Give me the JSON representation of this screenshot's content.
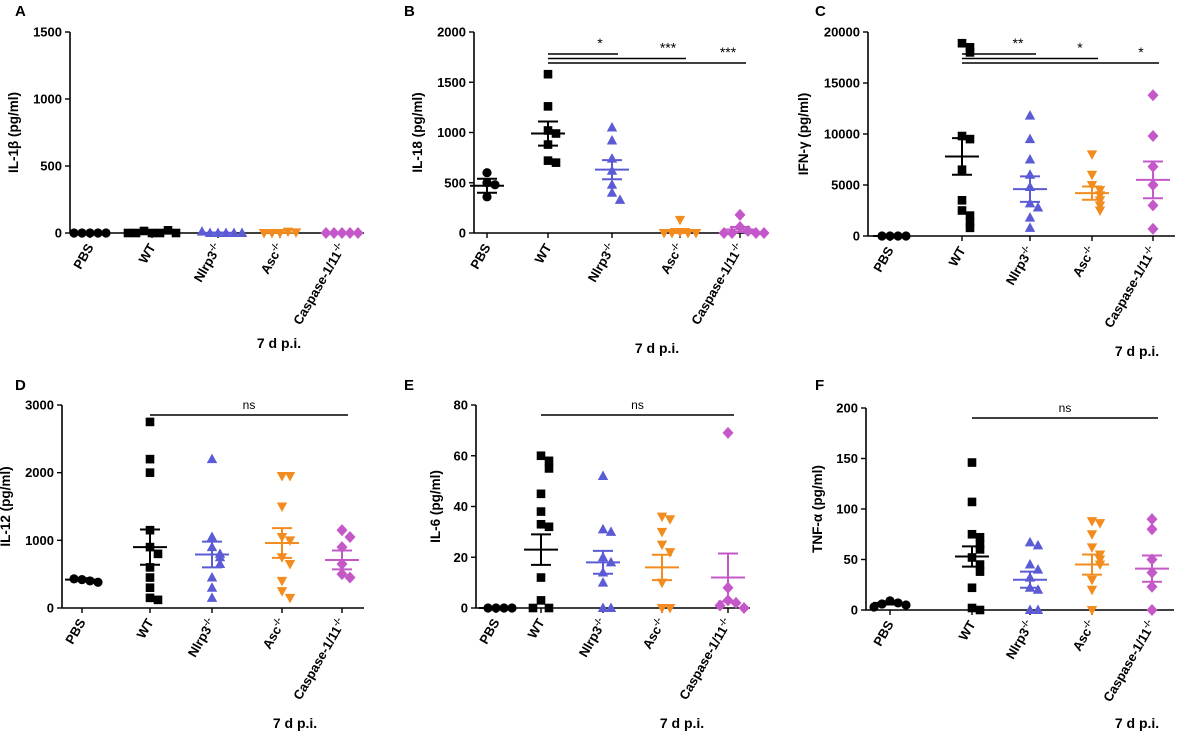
{
  "colors": {
    "PBS": "#000000",
    "WT": "#000000",
    "Nlrp3": "#5b5bd6",
    "Asc": "#f28c1e",
    "Casp": "#c558c9"
  },
  "chart_data": [
    {
      "panel": "A",
      "type": "scatter",
      "ylabel": "IL-1β (pg/ml)",
      "ylim": [
        0,
        1500
      ],
      "yticks": [
        0,
        500,
        1000,
        1500
      ],
      "xlabel": "7 d p.i.",
      "categories": [
        {
          "key": "PBS",
          "label": "PBS",
          "marker": "circle",
          "values": [
            0,
            0,
            0,
            0,
            0
          ]
        },
        {
          "key": "WT",
          "label": "WT",
          "marker": "square",
          "values": [
            0,
            0,
            15,
            20,
            0,
            0,
            0
          ]
        },
        {
          "key": "Nlrp3",
          "label": "Nlrp3",
          "sup": "-/-",
          "marker": "triangle",
          "values": [
            0,
            0,
            0,
            0,
            10,
            0
          ]
        },
        {
          "key": "Asc",
          "label": "Asc",
          "sup": "-/-",
          "marker": "tri-down",
          "values": [
            0,
            10,
            0,
            5,
            0
          ]
        },
        {
          "key": "Casp",
          "label": "Caspase-1/11",
          "sup": "-/-",
          "marker": "diamond",
          "values": [
            0,
            0,
            0,
            0,
            0
          ]
        }
      ],
      "means": [
        0,
        5,
        2,
        3,
        0
      ],
      "sems": [
        0,
        3,
        2,
        2,
        0
      ],
      "brackets": []
    },
    {
      "panel": "B",
      "type": "scatter",
      "ylabel": "IL-18 (pg/ml)",
      "ylim": [
        0,
        2000
      ],
      "yticks": [
        0,
        500,
        1000,
        1500,
        2000
      ],
      "xlabel": "7 d p.i.",
      "categories": [
        {
          "key": "PBS",
          "label": "PBS",
          "marker": "circle",
          "values": [
            600,
            500,
            480,
            360
          ]
        },
        {
          "key": "WT",
          "label": "WT",
          "marker": "square",
          "values": [
            1580,
            1260,
            1020,
            990,
            880,
            720,
            700
          ]
        },
        {
          "key": "Nlrp3",
          "label": "Nlrp3",
          "sup": "-/-",
          "marker": "triangle",
          "values": [
            1050,
            920,
            740,
            620,
            480,
            400,
            330
          ]
        },
        {
          "key": "Asc",
          "label": "Asc",
          "sup": "-/-",
          "marker": "tri-down",
          "values": [
            130,
            10,
            0,
            0,
            0,
            0
          ]
        },
        {
          "key": "Casp",
          "label": "Caspase-1/11",
          "sup": "-/-",
          "marker": "diamond",
          "values": [
            180,
            60,
            20,
            0,
            0,
            0,
            0
          ]
        }
      ],
      "means": [
        470,
        990,
        630,
        20,
        35
      ],
      "sems": [
        70,
        120,
        95,
        20,
        25
      ],
      "brackets": [
        {
          "from": 1,
          "to": 2,
          "label": "*"
        },
        {
          "from": 1,
          "to": 3,
          "label": "***"
        },
        {
          "from": 1,
          "to": 4,
          "label": "***"
        }
      ]
    },
    {
      "panel": "C",
      "type": "scatter",
      "ylabel": "IFN-γ (pg/ml)",
      "ylim": [
        0,
        20000
      ],
      "yticks": [
        0,
        5000,
        10000,
        15000,
        20000
      ],
      "xlabel": "7 d p.i.",
      "categories": [
        {
          "key": "PBS",
          "label": "PBS",
          "marker": "circle",
          "values": [
            0,
            0,
            0,
            0
          ]
        },
        {
          "key": "WT",
          "label": "WT",
          "marker": "square",
          "values": [
            18900,
            18500,
            18000,
            9800,
            9500,
            6500,
            3500,
            2500,
            2000,
            1300,
            800
          ]
        },
        {
          "key": "Nlrp3",
          "label": "Nlrp3",
          "sup": "-/-",
          "marker": "triangle",
          "values": [
            11800,
            9500,
            7500,
            6000,
            4800,
            3200,
            2800,
            1800,
            800
          ]
        },
        {
          "key": "Asc",
          "label": "Asc",
          "sup": "-/-",
          "marker": "tri-down",
          "values": [
            8000,
            6000,
            5000,
            4500,
            4000,
            3500,
            3000,
            2500
          ]
        },
        {
          "key": "Casp",
          "label": "Caspase-1/11",
          "sup": "-/-",
          "marker": "diamond",
          "values": [
            13800,
            9800,
            6800,
            5000,
            3000,
            700
          ]
        }
      ],
      "means": [
        0,
        7800,
        4600,
        4200,
        5500
      ],
      "sems": [
        0,
        1800,
        1250,
        650,
        1800
      ],
      "brackets": [
        {
          "from": 1,
          "to": 2,
          "label": "**"
        },
        {
          "from": 1,
          "to": 3,
          "label": "*"
        },
        {
          "from": 1,
          "to": 4,
          "label": "*"
        }
      ]
    },
    {
      "panel": "D",
      "type": "scatter",
      "ylabel": "IL-12 (pg/ml)",
      "ylim": [
        0,
        3000
      ],
      "yticks": [
        0,
        1000,
        2000,
        3000
      ],
      "xlabel": "7 d p.i.",
      "categories": [
        {
          "key": "PBS",
          "label": "PBS",
          "marker": "circle",
          "values": [
            420,
            400,
            430,
            380
          ]
        },
        {
          "key": "WT",
          "label": "WT",
          "marker": "square",
          "values": [
            2750,
            2200,
            2000,
            1150,
            900,
            800,
            600,
            450,
            300,
            150,
            120
          ]
        },
        {
          "key": "Nlrp3",
          "label": "Nlrp3",
          "sup": "-/-",
          "marker": "triangle",
          "values": [
            2200,
            1050,
            900,
            800,
            750,
            650,
            450,
            300,
            150
          ]
        },
        {
          "key": "Asc",
          "label": "Asc",
          "sup": "-/-",
          "marker": "tri-down",
          "values": [
            1950,
            1950,
            1500,
            1050,
            1000,
            750,
            650,
            400,
            250,
            150
          ]
        },
        {
          "key": "Casp",
          "label": "Caspase-1/11",
          "sup": "-/-",
          "marker": "diamond",
          "values": [
            1150,
            1050,
            900,
            650,
            500,
            450
          ]
        }
      ],
      "means": [
        420,
        900,
        790,
        960,
        710
      ],
      "sems": [
        20,
        260,
        190,
        220,
        140
      ],
      "brackets": [
        {
          "from": 1,
          "to": 4,
          "label": "ns"
        }
      ]
    },
    {
      "panel": "E",
      "type": "scatter",
      "ylabel": "IL-6 (pg/ml)",
      "ylim": [
        0,
        80
      ],
      "yticks": [
        0,
        20,
        40,
        60,
        80
      ],
      "xlabel": "7 d p.i.",
      "categories": [
        {
          "key": "PBS",
          "label": "PBS",
          "marker": "circle",
          "values": [
            0,
            0,
            0,
            0
          ]
        },
        {
          "key": "WT",
          "label": "WT",
          "marker": "square",
          "values": [
            60,
            58,
            55,
            45,
            38,
            33,
            32,
            12,
            3,
            0,
            0
          ]
        },
        {
          "key": "Nlrp3",
          "label": "Nlrp3",
          "sup": "-/-",
          "marker": "triangle",
          "values": [
            52,
            31,
            30,
            20,
            18,
            14,
            10,
            0,
            0
          ]
        },
        {
          "key": "Asc",
          "label": "Asc",
          "sup": "-/-",
          "marker": "tri-down",
          "values": [
            36,
            35,
            30,
            25,
            22,
            10,
            0,
            0
          ]
        },
        {
          "key": "Casp",
          "label": "Caspase-1/11",
          "sup": "-/-",
          "marker": "diamond",
          "values": [
            69,
            8,
            3,
            2,
            1,
            0
          ]
        }
      ],
      "means": [
        0,
        23,
        18,
        16,
        12
      ],
      "sems": [
        0,
        6,
        4.5,
        5,
        9.5
      ],
      "brackets": [
        {
          "from": 1,
          "to": 4,
          "label": "ns"
        }
      ]
    },
    {
      "panel": "F",
      "type": "scatter",
      "ylabel": "TNF-α (pg/ml)",
      "ylim": [
        0,
        200
      ],
      "yticks": [
        0,
        50,
        100,
        150,
        200
      ],
      "xlabel": "7 d p.i.",
      "categories": [
        {
          "key": "PBS",
          "label": "PBS",
          "marker": "circle",
          "values": [
            9,
            7,
            6,
            5,
            3
          ]
        },
        {
          "key": "WT",
          "label": "WT",
          "marker": "square",
          "values": [
            146,
            107,
            75,
            72,
            65,
            60,
            52,
            45,
            38,
            22,
            2,
            0
          ]
        },
        {
          "key": "Nlrp3",
          "label": "Nlrp3",
          "sup": "-/-",
          "marker": "triangle",
          "values": [
            67,
            64,
            45,
            40,
            32,
            22,
            20,
            0,
            0
          ]
        },
        {
          "key": "Asc",
          "label": "Asc",
          "sup": "-/-",
          "marker": "tri-down",
          "values": [
            88,
            86,
            75,
            62,
            55,
            50,
            45,
            30,
            20,
            0
          ]
        },
        {
          "key": "Casp",
          "label": "Caspase-1/11",
          "sup": "-/-",
          "marker": "diamond",
          "values": [
            90,
            80,
            50,
            37,
            23,
            0
          ]
        }
      ],
      "means": [
        7,
        53,
        30,
        45,
        41
      ],
      "sems": [
        1.5,
        10,
        8,
        10,
        13
      ],
      "brackets": [
        {
          "from": 1,
          "to": 4,
          "label": "ns"
        }
      ]
    }
  ]
}
